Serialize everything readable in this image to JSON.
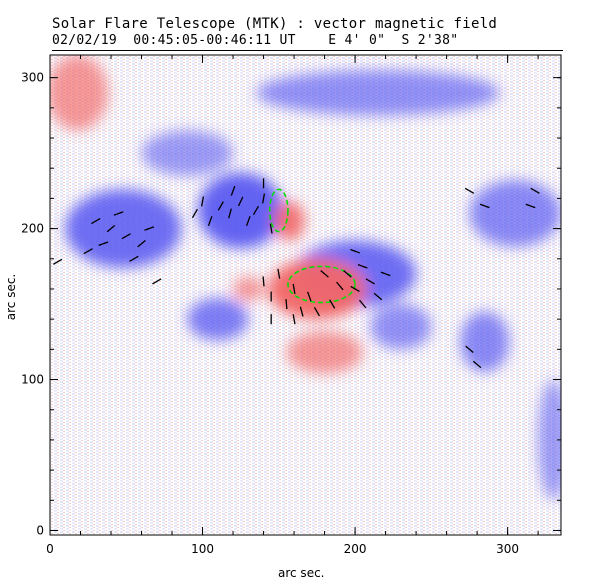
{
  "chart_data": {
    "type": "heatmap",
    "title": "Solar Flare Telescope (MTK) : vector magnetic field",
    "subtitle": "02/02/19  00:45:05-00:46:11 UT    E 4' 0\"  S 2'38\"",
    "xlabel": "arc sec.",
    "ylabel": "arc sec.",
    "xlim": [
      0,
      335
    ],
    "ylim": [
      -3,
      315
    ],
    "xticks": [
      0,
      100,
      200,
      300
    ],
    "yticks": [
      0,
      100,
      200,
      300
    ],
    "colors": {
      "positive": "#f05050",
      "negative": "#3c3cf0",
      "contour": "#00dd00",
      "vector": "#000000"
    },
    "positive_regions": [
      {
        "x": 175,
        "y": 160,
        "rx": 32,
        "ry": 20,
        "strength": 1.0
      },
      {
        "x": 157,
        "y": 205,
        "rx": 10,
        "ry": 13,
        "strength": 0.9
      },
      {
        "x": 18,
        "y": 290,
        "rx": 20,
        "ry": 25,
        "strength": 0.5
      },
      {
        "x": 180,
        "y": 118,
        "rx": 25,
        "ry": 14,
        "strength": 0.5
      },
      {
        "x": 130,
        "y": 160,
        "rx": 10,
        "ry": 8,
        "strength": 0.5
      }
    ],
    "negative_regions": [
      {
        "x": 48,
        "y": 200,
        "rx": 38,
        "ry": 26,
        "strength": 0.9
      },
      {
        "x": 125,
        "y": 212,
        "rx": 28,
        "ry": 25,
        "strength": 1.0
      },
      {
        "x": 200,
        "y": 170,
        "rx": 40,
        "ry": 22,
        "strength": 0.9
      },
      {
        "x": 110,
        "y": 140,
        "rx": 20,
        "ry": 14,
        "strength": 0.7
      },
      {
        "x": 215,
        "y": 290,
        "rx": 80,
        "ry": 15,
        "strength": 0.5
      },
      {
        "x": 305,
        "y": 210,
        "rx": 30,
        "ry": 22,
        "strength": 0.6
      },
      {
        "x": 285,
        "y": 125,
        "rx": 16,
        "ry": 20,
        "strength": 0.6
      },
      {
        "x": 230,
        "y": 135,
        "rx": 20,
        "ry": 15,
        "strength": 0.5
      },
      {
        "x": 330,
        "y": 60,
        "rx": 10,
        "ry": 40,
        "strength": 0.4
      },
      {
        "x": 90,
        "y": 250,
        "rx": 30,
        "ry": 15,
        "strength": 0.4
      }
    ],
    "contours": [
      {
        "x": 178,
        "y": 163,
        "rx": 22,
        "ry": 12
      },
      {
        "x": 150,
        "y": 212,
        "rx": 6,
        "ry": 14
      }
    ],
    "vectors": [
      [
        95,
        210,
        60
      ],
      [
        100,
        218,
        80
      ],
      [
        105,
        205,
        70
      ],
      [
        112,
        215,
        60
      ],
      [
        118,
        210,
        75
      ],
      [
        125,
        218,
        65
      ],
      [
        130,
        205,
        70
      ],
      [
        135,
        212,
        60
      ],
      [
        140,
        220,
        80
      ],
      [
        120,
        225,
        70
      ],
      [
        30,
        205,
        30
      ],
      [
        40,
        200,
        40
      ],
      [
        50,
        195,
        30
      ],
      [
        45,
        210,
        20
      ],
      [
        60,
        190,
        40
      ],
      [
        55,
        180,
        30
      ],
      [
        65,
        200,
        20
      ],
      [
        25,
        185,
        30
      ],
      [
        35,
        190,
        20
      ],
      [
        70,
        165,
        30
      ],
      [
        5,
        178,
        30
      ],
      [
        140,
        165,
        95
      ],
      [
        145,
        155,
        90
      ],
      [
        150,
        170,
        100
      ],
      [
        155,
        150,
        95
      ],
      [
        160,
        160,
        100
      ],
      [
        165,
        145,
        105
      ],
      [
        170,
        155,
        110
      ],
      [
        175,
        145,
        120
      ],
      [
        180,
        170,
        140
      ],
      [
        185,
        150,
        120
      ],
      [
        190,
        162,
        130
      ],
      [
        195,
        170,
        140
      ],
      [
        200,
        160,
        150
      ],
      [
        205,
        175,
        160
      ],
      [
        210,
        165,
        150
      ],
      [
        215,
        155,
        140
      ],
      [
        220,
        170,
        160
      ],
      [
        200,
        185,
        160
      ],
      [
        205,
        150,
        130
      ],
      [
        145,
        140,
        90
      ],
      [
        160,
        140,
        100
      ],
      [
        275,
        120,
        140
      ],
      [
        280,
        110,
        140
      ],
      [
        275,
        225,
        150
      ],
      [
        285,
        215,
        160
      ],
      [
        315,
        215,
        160
      ],
      [
        318,
        225,
        150
      ],
      [
        140,
        230,
        90
      ],
      [
        145,
        200,
        100
      ]
    ]
  }
}
